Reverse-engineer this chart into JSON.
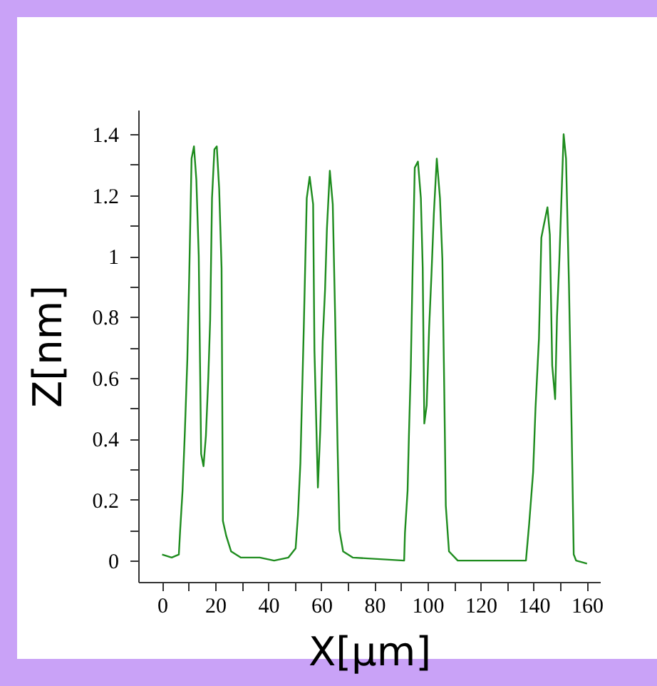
{
  "chart_data": {
    "type": "line",
    "xlabel": "X[µm]",
    "ylabel": "Z[nm]",
    "xlim": [
      -9,
      165
    ],
    "ylim": [
      -0.07,
      1.48
    ],
    "xticks": [
      0,
      {
        "value": 10,
        "label": null
      },
      20,
      {
        "value": 30,
        "label": null
      },
      40,
      {
        "value": 50,
        "label": null
      },
      60,
      {
        "value": 70,
        "label": null
      },
      80,
      {
        "value": 90,
        "label": null
      },
      100,
      {
        "value": 110,
        "label": null
      },
      120,
      {
        "value": 130,
        "label": null
      },
      140,
      {
        "value": 150,
        "label": null
      },
      160
    ],
    "yticks": [
      0,
      {
        "value": 0.1,
        "label": null
      },
      0.2,
      {
        "value": 0.3,
        "label": null
      },
      0.4,
      {
        "value": 0.5,
        "label": null
      },
      0.6,
      {
        "value": 0.7,
        "label": null
      },
      0.8,
      {
        "value": 0.9,
        "label": null
      },
      1,
      {
        "value": 1.1,
        "label": null
      },
      1.2,
      {
        "value": 1.3,
        "label": null
      },
      1.4
    ],
    "grid": false,
    "legend": false,
    "marker": "none",
    "line_style": "solid",
    "x": [
      0,
      3.6,
      6.3,
      6.8,
      7.7,
      8.6,
      9.5,
      10.2,
      11.1,
      12.0,
      12.9,
      13.8,
      14.7,
      15.6,
      16.5,
      17.4,
      18.1,
      18.8,
      19.7,
      20.6,
      21.5,
      22.4,
      22.9,
      24.2,
      26.0,
      29.6,
      36.8,
      42.2,
      47.6,
      50.3,
      51.2,
      52.1,
      52.7,
      53.4,
      54.5,
      55.6,
      56.9,
      57.4,
      58.7,
      59.6,
      60.5,
      61.4,
      62.1,
      63.2,
      64.3,
      65.2,
      66.1,
      66.8,
      68.2,
      71.8,
      91.2,
      91.5,
      92.5,
      93.0,
      93.7,
      94.4,
      95.2,
      96.4,
      97.5,
      98.2,
      98.8,
      99.7,
      100.6,
      101.5,
      102.4,
      103.5,
      104.7,
      105.6,
      106.3,
      106.9,
      108.1,
      111.4,
      137.1,
      138.3,
      139.8,
      140.7,
      142.0,
      142.9,
      143.8,
      145.2,
      146.1,
      147.0,
      148.1,
      148.8,
      149.7,
      150.6,
      151.3,
      152.2,
      153.3,
      154.3,
      155.1,
      156.0,
      160.1
    ],
    "series": [
      {
        "color": "#1e8c1e",
        "values": [
          0.02,
          0.01,
          0.02,
          0.1,
          0.23,
          0.43,
          0.66,
          0.93,
          1.32,
          1.36,
          1.25,
          1.0,
          0.35,
          0.31,
          0.41,
          0.6,
          0.79,
          1.19,
          1.35,
          1.36,
          1.22,
          0.96,
          0.13,
          0.08,
          0.03,
          0.01,
          0.01,
          0.0,
          0.01,
          0.04,
          0.15,
          0.32,
          0.53,
          0.77,
          1.19,
          1.26,
          1.17,
          0.69,
          0.24,
          0.43,
          0.72,
          0.89,
          1.09,
          1.28,
          1.17,
          0.8,
          0.38,
          0.1,
          0.03,
          0.01,
          0.0,
          0.09,
          0.23,
          0.41,
          0.63,
          0.96,
          1.29,
          1.31,
          1.19,
          0.96,
          0.45,
          0.51,
          0.76,
          0.94,
          1.14,
          1.32,
          1.19,
          0.99,
          0.57,
          0.18,
          0.03,
          0.0,
          0.0,
          0.12,
          0.29,
          0.5,
          0.73,
          1.06,
          1.1,
          1.16,
          1.07,
          0.64,
          0.53,
          0.8,
          0.99,
          1.22,
          1.4,
          1.32,
          0.91,
          0.44,
          0.02,
          0.0,
          -0.01
        ]
      }
    ]
  }
}
